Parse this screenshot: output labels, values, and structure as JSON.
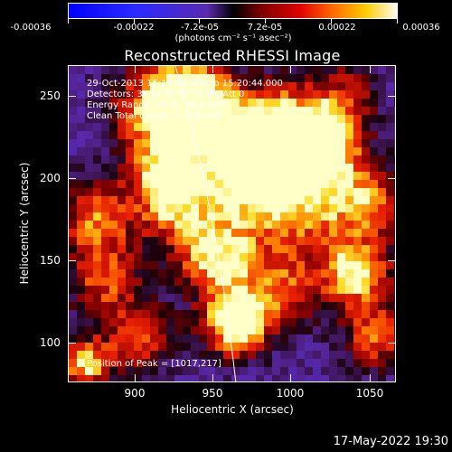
{
  "colorbar": {
    "tick_labels": [
      "-0.00036",
      "-0.00022",
      "-7.2e-05",
      "7.2e-05",
      "0.00022",
      "0.00036"
    ],
    "units": "(photons cm⁻² s⁻¹ asec⁻²)"
  },
  "title": "Reconstructed RHESSI Image",
  "info": {
    "time_range": "29-Oct-2013 15:14:44.000 to 15:20:44.000",
    "detectors": "Detectors: 3F 4F 5F 6F 7F 8F, Att 0",
    "energy": "Energy Range: 25.0 - 50.0 keV",
    "clean": "Clean     Total counts: 1.05E+04",
    "peak": "Position of Peak = [1017,217]"
  },
  "axes": {
    "xlabel": "Heliocentric X (arcsec)",
    "ylabel": "Heliocentric Y (arcsec)",
    "xticks": [
      "900",
      "950",
      "1000",
      "1050"
    ],
    "yticks": [
      "250",
      "200",
      "150",
      "100"
    ]
  },
  "footer": {
    "timestamp": "17-May-2022 19:30"
  },
  "colors": {
    "background": "#000000",
    "map_low": "#5a1fa8",
    "map_high": "#ffff00"
  }
}
